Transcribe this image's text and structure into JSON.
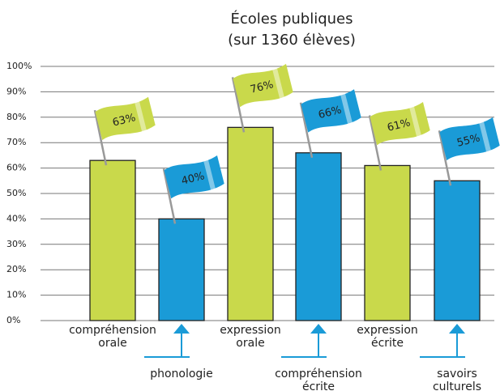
{
  "chart_data": {
    "type": "bar",
    "title": "Écoles publiques",
    "subtitle": "(sur 1360 élèves)",
    "categories": [
      "compréhension orale",
      "phonologie",
      "expression orale",
      "compréhension écrite",
      "expression écrite",
      "savoirs culturels"
    ],
    "values": [
      63,
      40,
      76,
      66,
      61,
      55
    ],
    "value_labels": [
      "63%",
      "40%",
      "76%",
      "66%",
      "61%",
      "55%"
    ],
    "colors": [
      "#c9d94b",
      "#1a9bd7",
      "#c9d94b",
      "#1a9bd7",
      "#c9d94b",
      "#1a9bd7"
    ],
    "ylim": [
      0,
      100
    ],
    "yticks": [
      {
        "value": 0,
        "label": "0%"
      },
      {
        "value": 10,
        "label": "10%"
      },
      {
        "value": 20,
        "label": "20%"
      },
      {
        "value": 30,
        "label": "30%"
      },
      {
        "value": 40,
        "label": "40%"
      },
      {
        "value": 50,
        "label": "50%"
      },
      {
        "value": 60,
        "label": "60%"
      },
      {
        "value": 70,
        "label": "70%"
      },
      {
        "value": 80,
        "label": "80%"
      },
      {
        "value": 90,
        "label": "90%"
      },
      {
        "value": 100,
        "label": "100%"
      }
    ],
    "grid": true
  }
}
